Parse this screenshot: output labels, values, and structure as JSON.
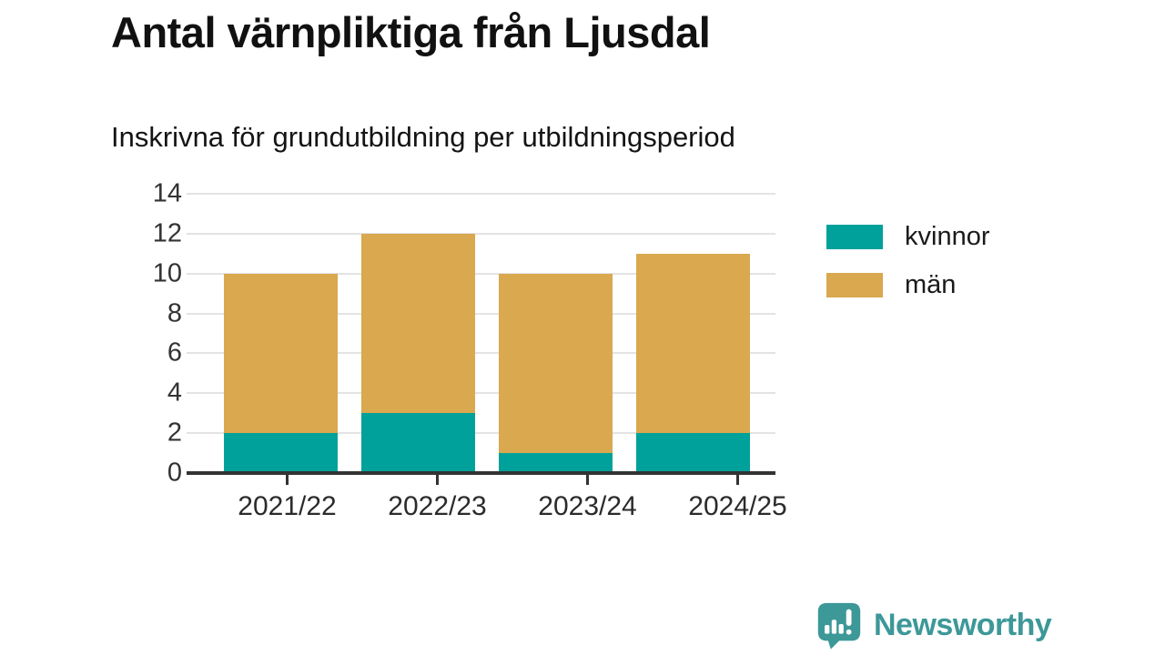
{
  "title": "Antal värnpliktiga från Ljusdal",
  "subtitle": "Inskrivna för grundutbildning per utbildningsperiod",
  "chart_data": {
    "type": "bar",
    "stacked": true,
    "title": "Antal värnpliktiga från Ljusdal",
    "subtitle": "Inskrivna för grundutbildning per utbildningsperiod",
    "categories": [
      "2021/22",
      "2022/23",
      "2023/24",
      "2024/25"
    ],
    "series": [
      {
        "name": "kvinnor",
        "color": "#00a19b",
        "values": [
          2,
          3,
          1,
          2
        ]
      },
      {
        "name": "män",
        "color": "#d9a84f",
        "values": [
          8,
          9,
          9,
          9
        ]
      }
    ],
    "stack_totals": [
      10,
      12,
      10,
      11
    ],
    "xlabel": "",
    "ylabel": "",
    "ylim": [
      0,
      14
    ],
    "ytick_step": 2,
    "grid": true,
    "legend_position": "right"
  },
  "footer": {
    "brand": "Newsworthy"
  },
  "colors": {
    "kvinnor": "#00a19b",
    "man": "#d9a84f",
    "brand": "#3d9898",
    "title_text": "#111111",
    "axis_text": "#333333",
    "gridline": "#e3e3e3",
    "axis_line": "#333333"
  }
}
